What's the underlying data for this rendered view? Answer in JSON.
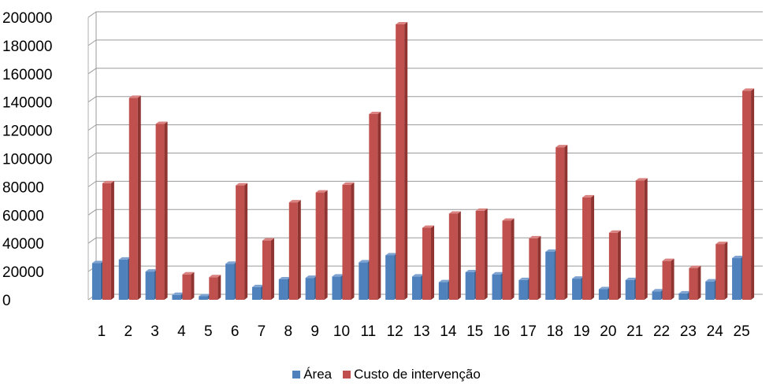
{
  "chart_data": {
    "type": "bar",
    "categories": [
      "1",
      "2",
      "3",
      "4",
      "5",
      "6",
      "7",
      "8",
      "9",
      "10",
      "11",
      "12",
      "13",
      "14",
      "15",
      "16",
      "17",
      "18",
      "19",
      "20",
      "21",
      "22",
      "23",
      "24",
      "25"
    ],
    "series": [
      {
        "name": "Área",
        "color": "#4F81BD",
        "values": [
          26000,
          28500,
          20000,
          3500,
          2500,
          25500,
          9000,
          14500,
          15500,
          16500,
          26500,
          31500,
          16500,
          12500,
          19500,
          18000,
          14000,
          34000,
          15000,
          7500,
          14000,
          6000,
          4500,
          13000,
          29500
        ]
      },
      {
        "name": "Custo de intervenção",
        "color": "#C0504D",
        "values": [
          82500,
          143000,
          124500,
          18000,
          16000,
          81000,
          42000,
          69000,
          76000,
          81500,
          131500,
          195000,
          51000,
          61000,
          63000,
          56000,
          43500,
          108000,
          72500,
          47500,
          84500,
          27500,
          22500,
          39500,
          148000
        ]
      }
    ],
    "yticks": [
      "0",
      "20000",
      "40000",
      "60000",
      "80000",
      "100000",
      "120000",
      "140000",
      "160000",
      "180000",
      "200000"
    ],
    "ylim": [
      0,
      200000
    ],
    "grid": true,
    "legend_position": "bottom"
  }
}
